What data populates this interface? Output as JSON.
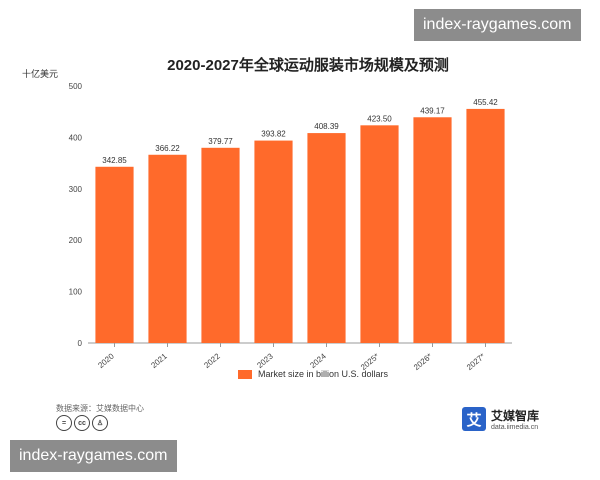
{
  "watermark_text": "index-raygames.com",
  "unit_label": "十亿美元",
  "source_label": "数据来源：艾媒数据中心",
  "brand": {
    "name": "艾媒智库",
    "url": "data.iimedia.cn",
    "mark": "艾"
  },
  "license_icons": [
    "equals-icon",
    "cc-icon",
    "person-icon"
  ],
  "colors": {
    "bar": "#ff6a2b",
    "axis": "#999999",
    "grid": "#e0e0e0"
  },
  "chart_data": {
    "type": "bar",
    "title": "2020-2027年全球运动服装市场规模及预测",
    "xlabel": "",
    "ylabel": "十亿美元",
    "categories": [
      "2020",
      "2021",
      "2022",
      "2023",
      "2024",
      "2025*",
      "2026*",
      "2027*"
    ],
    "series": [
      {
        "name": "Market size in billion U.S. dollars",
        "values": [
          342.85,
          366.22,
          379.77,
          393.82,
          408.39,
          423.5,
          439.17,
          455.42
        ],
        "labels": [
          "342.85",
          "366.22",
          "379.77",
          "393.82",
          "408.39",
          "423.50",
          "439.17",
          "455.42"
        ]
      }
    ],
    "ylim": [
      0,
      500
    ],
    "yticks": [
      0,
      100,
      200,
      300,
      400,
      500
    ],
    "grid": false,
    "legend": "bottom"
  }
}
